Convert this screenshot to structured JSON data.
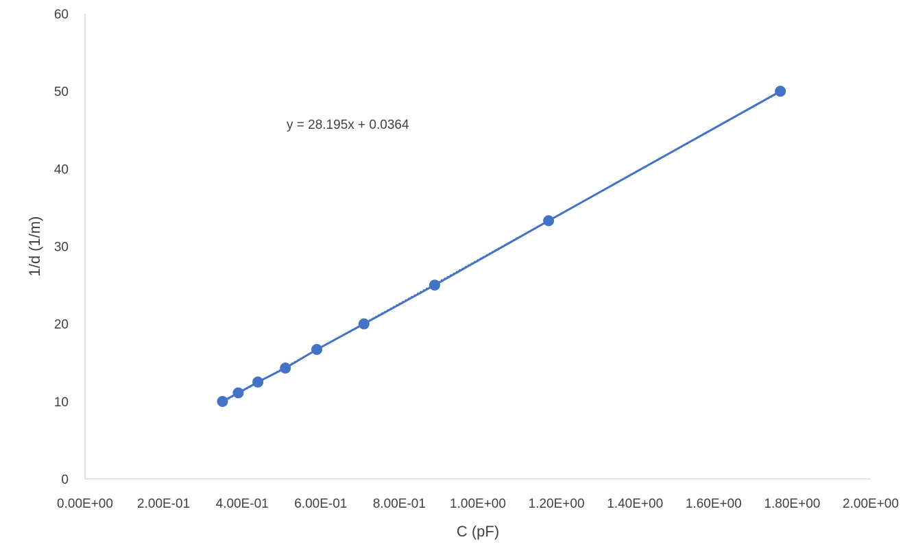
{
  "chart_data": {
    "type": "scatter",
    "xlabel": "C (pF)",
    "ylabel": "1/d (1/m)",
    "xlim": [
      0,
      2.0
    ],
    "ylim": [
      0,
      60
    ],
    "x_ticks": [
      0,
      0.2,
      0.4,
      0.6,
      0.8,
      1.0,
      1.2,
      1.4,
      1.6,
      1.8,
      2.0
    ],
    "x_tick_labels": [
      "0.00E+00",
      "2.00E-01",
      "4.00E-01",
      "6.00E-01",
      "8.00E-01",
      "1.00E+00",
      "1.20E+00",
      "1.40E+00",
      "1.60E+00",
      "1.80E+00",
      "2.00E+00"
    ],
    "y_ticks": [
      0,
      10,
      20,
      30,
      40,
      50,
      60
    ],
    "y_tick_labels": [
      "0",
      "10",
      "20",
      "30",
      "40",
      "50",
      "60"
    ],
    "grid": false,
    "series": [
      {
        "x": [
          0.35,
          0.39,
          0.44,
          0.51,
          0.59,
          0.71,
          0.89,
          1.18,
          1.77
        ],
        "y": [
          10.0,
          11.1,
          12.5,
          14.3,
          16.7,
          20.0,
          25.0,
          33.3,
          50.0
        ],
        "color": "#4472C4",
        "connected": true
      }
    ],
    "trendline": {
      "equation_label": "y = 28.195x + 0.0364",
      "slope": 28.195,
      "intercept": 0.0364,
      "style": "dotted",
      "color": "#4472C4"
    }
  }
}
